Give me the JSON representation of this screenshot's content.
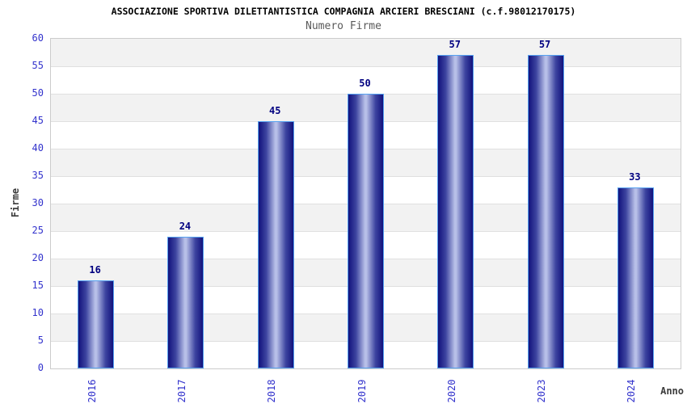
{
  "header": {
    "title": "ASSOCIAZIONE SPORTIVA DILETTANTISTICA COMPAGNIA ARCIERI BRESCIANI (c.f.98012170175)",
    "subtitle": "Numero Firme"
  },
  "chart_data": {
    "type": "bar",
    "title": "ASSOCIAZIONE SPORTIVA DILETTANTISTICA COMPAGNIA ARCIERI BRESCIANI (c.f.98012170175)",
    "subtitle": "Numero Firme",
    "categories": [
      "2016",
      "2017",
      "2018",
      "2019",
      "2020",
      "2023",
      "2024"
    ],
    "values": [
      16,
      24,
      45,
      50,
      57,
      57,
      33
    ],
    "value_labels": [
      "16",
      "24",
      "45",
      "50",
      "57",
      "57",
      "33"
    ],
    "xlabel": "Anno",
    "ylabel": "Firme",
    "ylim": [
      0,
      60
    ],
    "y_ticks": [
      0,
      5,
      10,
      15,
      20,
      25,
      30,
      35,
      40,
      45,
      50,
      55,
      60
    ],
    "grid": true,
    "banded_background": true,
    "legend": null
  },
  "colors": {
    "title": "#000000",
    "subtitle": "#5a5a5a",
    "axis_title": "#3c3c3c",
    "tick_label": "#3333cc",
    "value_label": "#000080",
    "bar_edge": "#12127c",
    "bar_mid": "#3d44a0",
    "bar_center": "#b8c0e8",
    "bar_border": "#55a1f0",
    "band_gray": "#f2f2f2",
    "band_white": "#ffffff",
    "gridline": "#e0e0e0",
    "plot_border": "#cccccc",
    "background": "#ffffff"
  }
}
